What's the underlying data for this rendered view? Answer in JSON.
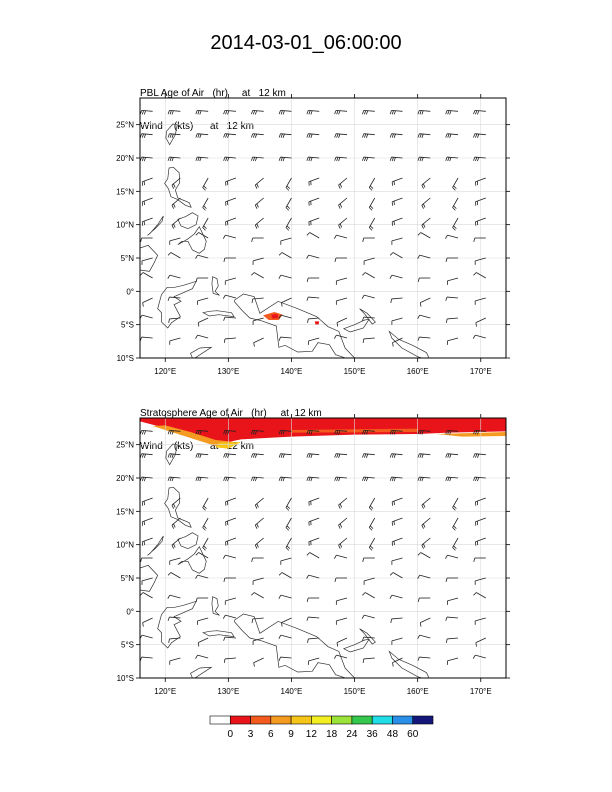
{
  "title": "2014-03-01_06:00:00",
  "panels": [
    {
      "title_line1": "PBL Age of Air   (hr)     at   12 km",
      "title_line2": "Wind    (kts)      at   12 km",
      "field": "pbl"
    },
    {
      "title_line1": "Stratosphere Age of Air   (hr)     at  12 km",
      "title_line2": "Wind    (kts)      at   12 km",
      "field": "strat"
    }
  ],
  "axes": {
    "lon_ticks": [
      "120°E",
      "130°E",
      "140°E",
      "150°E",
      "160°E",
      "170°E"
    ],
    "lon_values": [
      120,
      130,
      140,
      150,
      160,
      170
    ],
    "lat_ticks": [
      "25°N",
      "20°N",
      "15°N",
      "10°N",
      "5°N",
      "0°",
      "5°S",
      "10°S"
    ],
    "lat_values": [
      25,
      20,
      15,
      10,
      5,
      0,
      -5,
      -10
    ],
    "lon_range": [
      116,
      174
    ],
    "lat_range": [
      -10,
      29
    ],
    "grid": true
  },
  "colorbar": {
    "labels": [
      "0",
      "3",
      "6",
      "9",
      "12",
      "18",
      "24",
      "36",
      "48",
      "60"
    ],
    "colors": [
      "#ffffff",
      "#e8141a",
      "#f25a1e",
      "#f59b22",
      "#f5c51a",
      "#f3ee22",
      "#9be33a",
      "#34c94c",
      "#22dce8",
      "#2a8fe8",
      "#14187a"
    ]
  }
}
